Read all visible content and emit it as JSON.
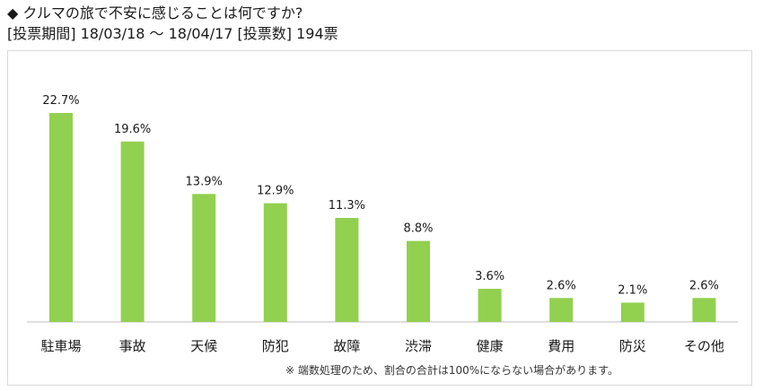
{
  "header": {
    "title": "◆ クルマの旅で不安に感じることは何ですか?",
    "period": "[投票期間] 18/03/18 〜 18/04/17 [投票数] 194票"
  },
  "footnote": "※ 端数処理のため、割合の合計は100%にならない場合があります。",
  "colors": {
    "bar": "#92d050",
    "axis": "#bfbfbf",
    "frame": "#d9d9d9"
  },
  "chart_data": {
    "type": "bar",
    "categories": [
      "駐車場",
      "事故",
      "天候",
      "防犯",
      "故障",
      "渋滞",
      "健康",
      "費用",
      "防災",
      "その他"
    ],
    "values": [
      22.7,
      19.6,
      13.9,
      12.9,
      11.3,
      8.8,
      3.6,
      2.6,
      2.1,
      2.6
    ],
    "value_labels": [
      "22.7%",
      "19.6%",
      "13.9%",
      "12.9%",
      "11.3%",
      "8.8%",
      "3.6%",
      "2.6%",
      "2.1%",
      "2.6%"
    ],
    "title": "",
    "xlabel": "",
    "ylabel": "",
    "ylim": [
      0,
      22.7
    ],
    "grid": false,
    "legend": "none"
  }
}
